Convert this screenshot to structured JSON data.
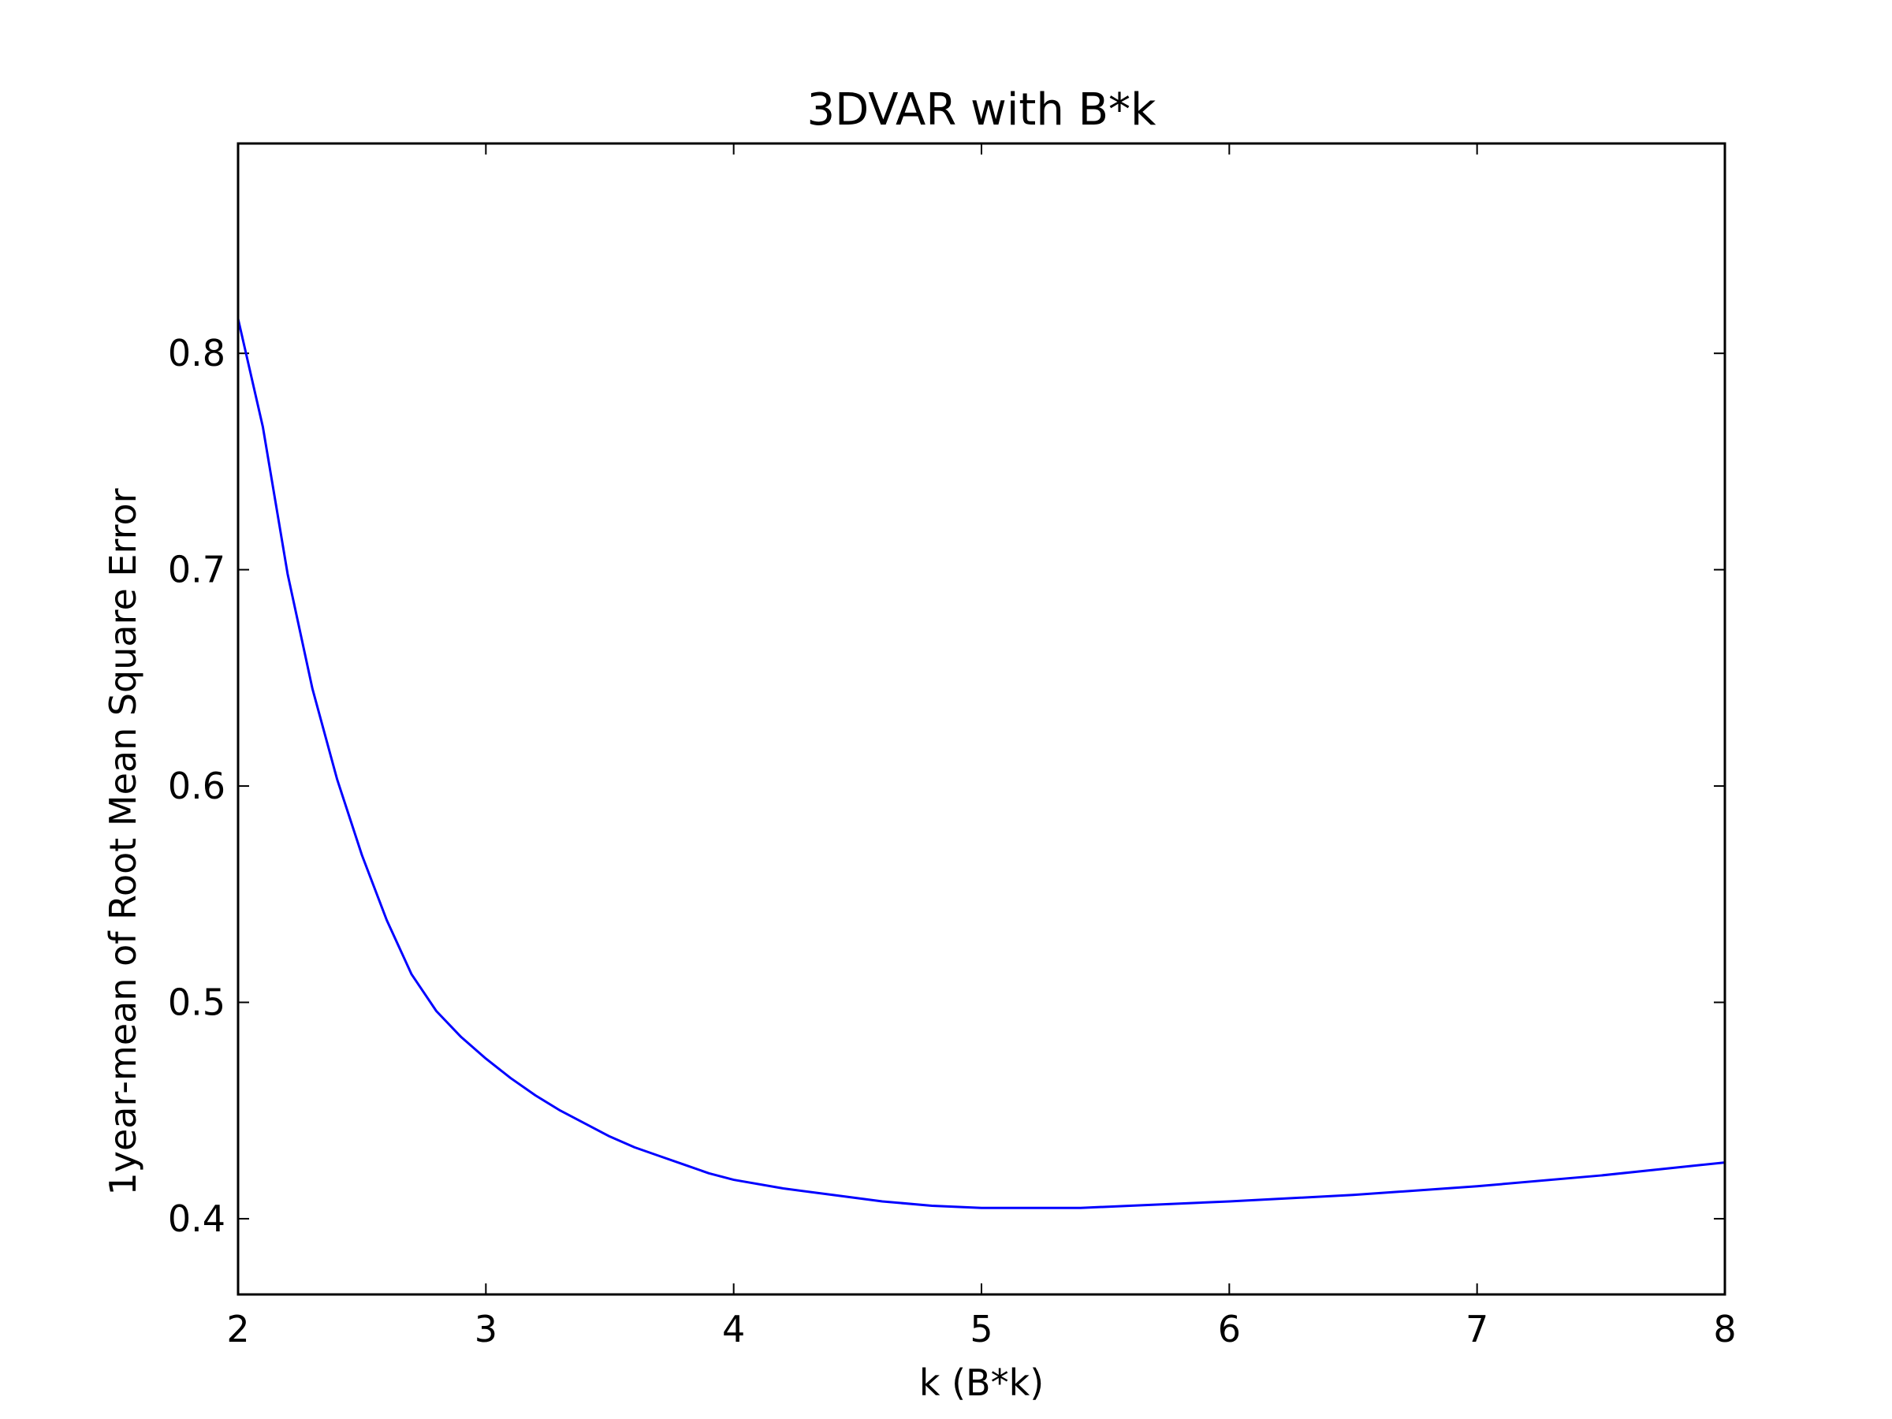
{
  "chart_data": {
    "type": "line",
    "title": "3DVAR with B*k",
    "xlabel": "k (B*k)",
    "ylabel": "1year-mean of Root Mean Square Error",
    "xlim": [
      2,
      8
    ],
    "ylim": [
      0.365,
      0.897
    ],
    "xticks": [
      2,
      3,
      4,
      5,
      6,
      7,
      8
    ],
    "xtick_labels": [
      "2",
      "3",
      "4",
      "5",
      "6",
      "7",
      "8"
    ],
    "yticks": [
      0.4,
      0.5,
      0.6,
      0.7,
      0.8
    ],
    "ytick_labels": [
      "0.4",
      "0.5",
      "0.6",
      "0.7",
      "0.8"
    ],
    "grid": false,
    "legend": "none",
    "series": [
      {
        "color": "#0000ff",
        "x": [
          2.0,
          2.1,
          2.2,
          2.3,
          2.4,
          2.5,
          2.6,
          2.7,
          2.8,
          2.9,
          3.0,
          3.1,
          3.2,
          3.3,
          3.4,
          3.5,
          3.6,
          3.7,
          3.8,
          3.9,
          4.0,
          4.2,
          4.4,
          4.6,
          4.8,
          5.0,
          5.2,
          5.4,
          5.6,
          5.8,
          6.0,
          6.5,
          7.0,
          7.5,
          8.0
        ],
        "values": [
          0.816,
          0.766,
          0.698,
          0.645,
          0.603,
          0.568,
          0.538,
          0.513,
          0.496,
          0.484,
          0.474,
          0.465,
          0.457,
          0.45,
          0.444,
          0.438,
          0.433,
          0.429,
          0.425,
          0.421,
          0.418,
          0.414,
          0.411,
          0.408,
          0.406,
          0.405,
          0.405,
          0.405,
          0.406,
          0.407,
          0.408,
          0.411,
          0.415,
          0.42,
          0.426
        ]
      }
    ]
  }
}
